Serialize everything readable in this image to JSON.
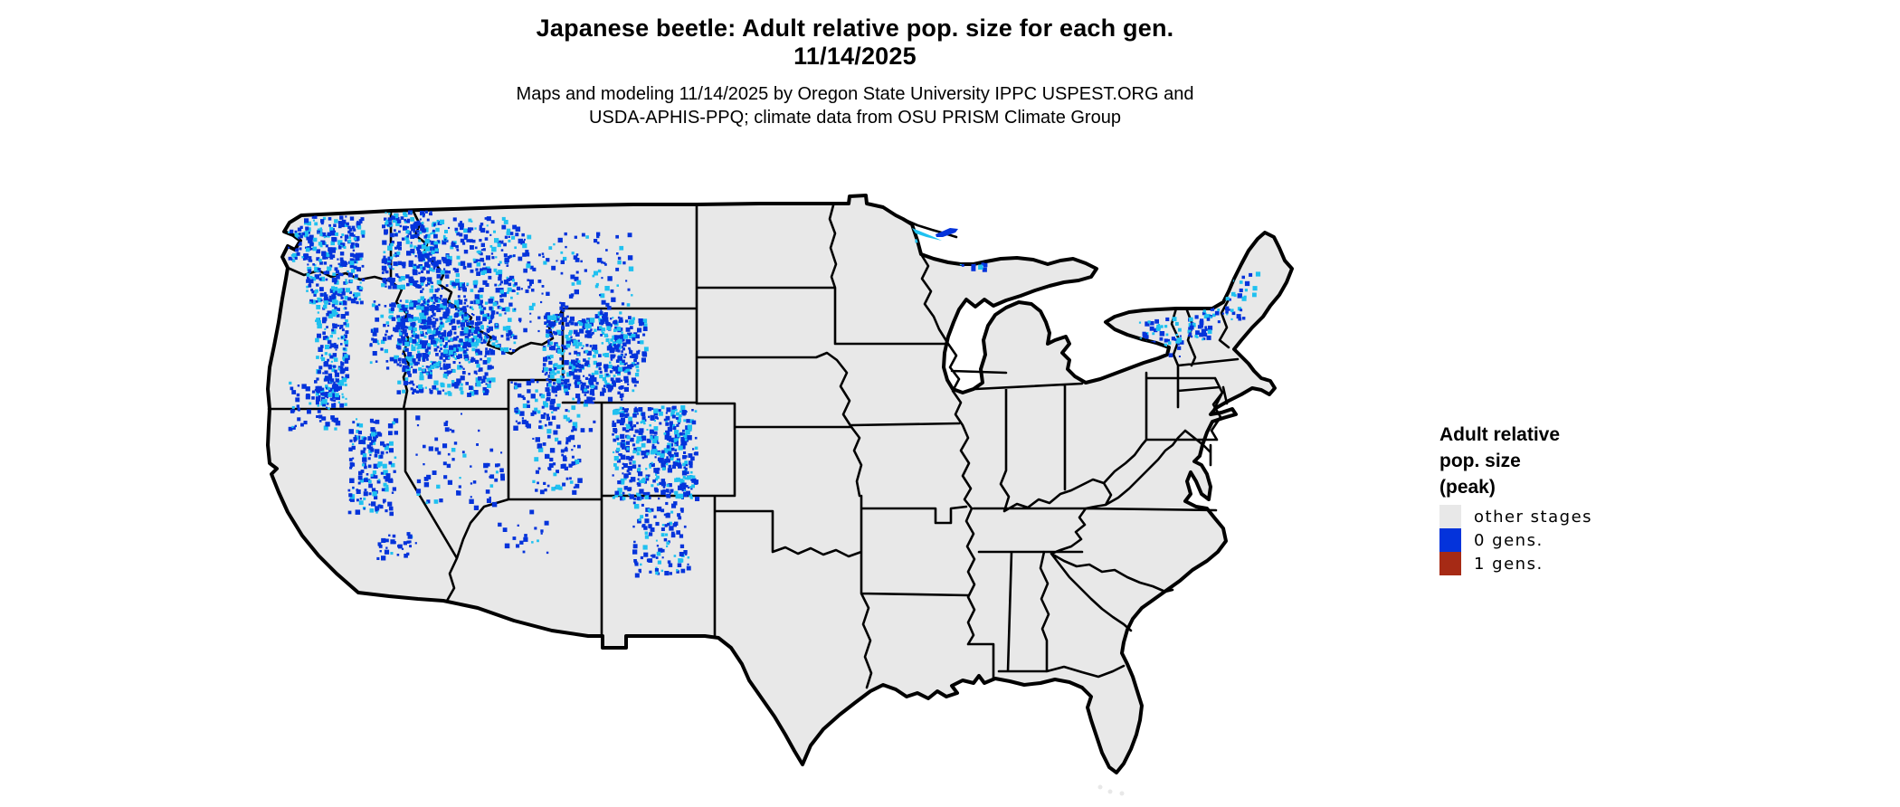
{
  "header": {
    "title_line1": "Japanese beetle: Adult relative pop. size for each gen.",
    "title_line2": "11/14/2025",
    "subtitle_line1": "Maps and modeling 11/14/2025 by Oregon State University IPPC USPEST.ORG and",
    "subtitle_line2": "USDA-APHIS-PPQ; climate data from OSU PRISM Climate Group"
  },
  "legend": {
    "title_line1": "Adult relative",
    "title_line2": "pop. size",
    "title_line3": "(peak)",
    "items": [
      {
        "label": "other stages",
        "color": "#e8e8e8"
      },
      {
        "label": "0 gens.",
        "color": "#0433db"
      },
      {
        "label": "1 gens.",
        "color": "#a62a15"
      }
    ]
  },
  "map": {
    "region": "Continental United States",
    "land_fill": "#e8e8e8",
    "border_color": "#000000",
    "water_background": "#ffffff",
    "colors": {
      "other_stages": "#e8e8e8",
      "gen0": "#0433db",
      "gen0_light": "#1fc1f0",
      "gen1": "#a62a15"
    }
  }
}
